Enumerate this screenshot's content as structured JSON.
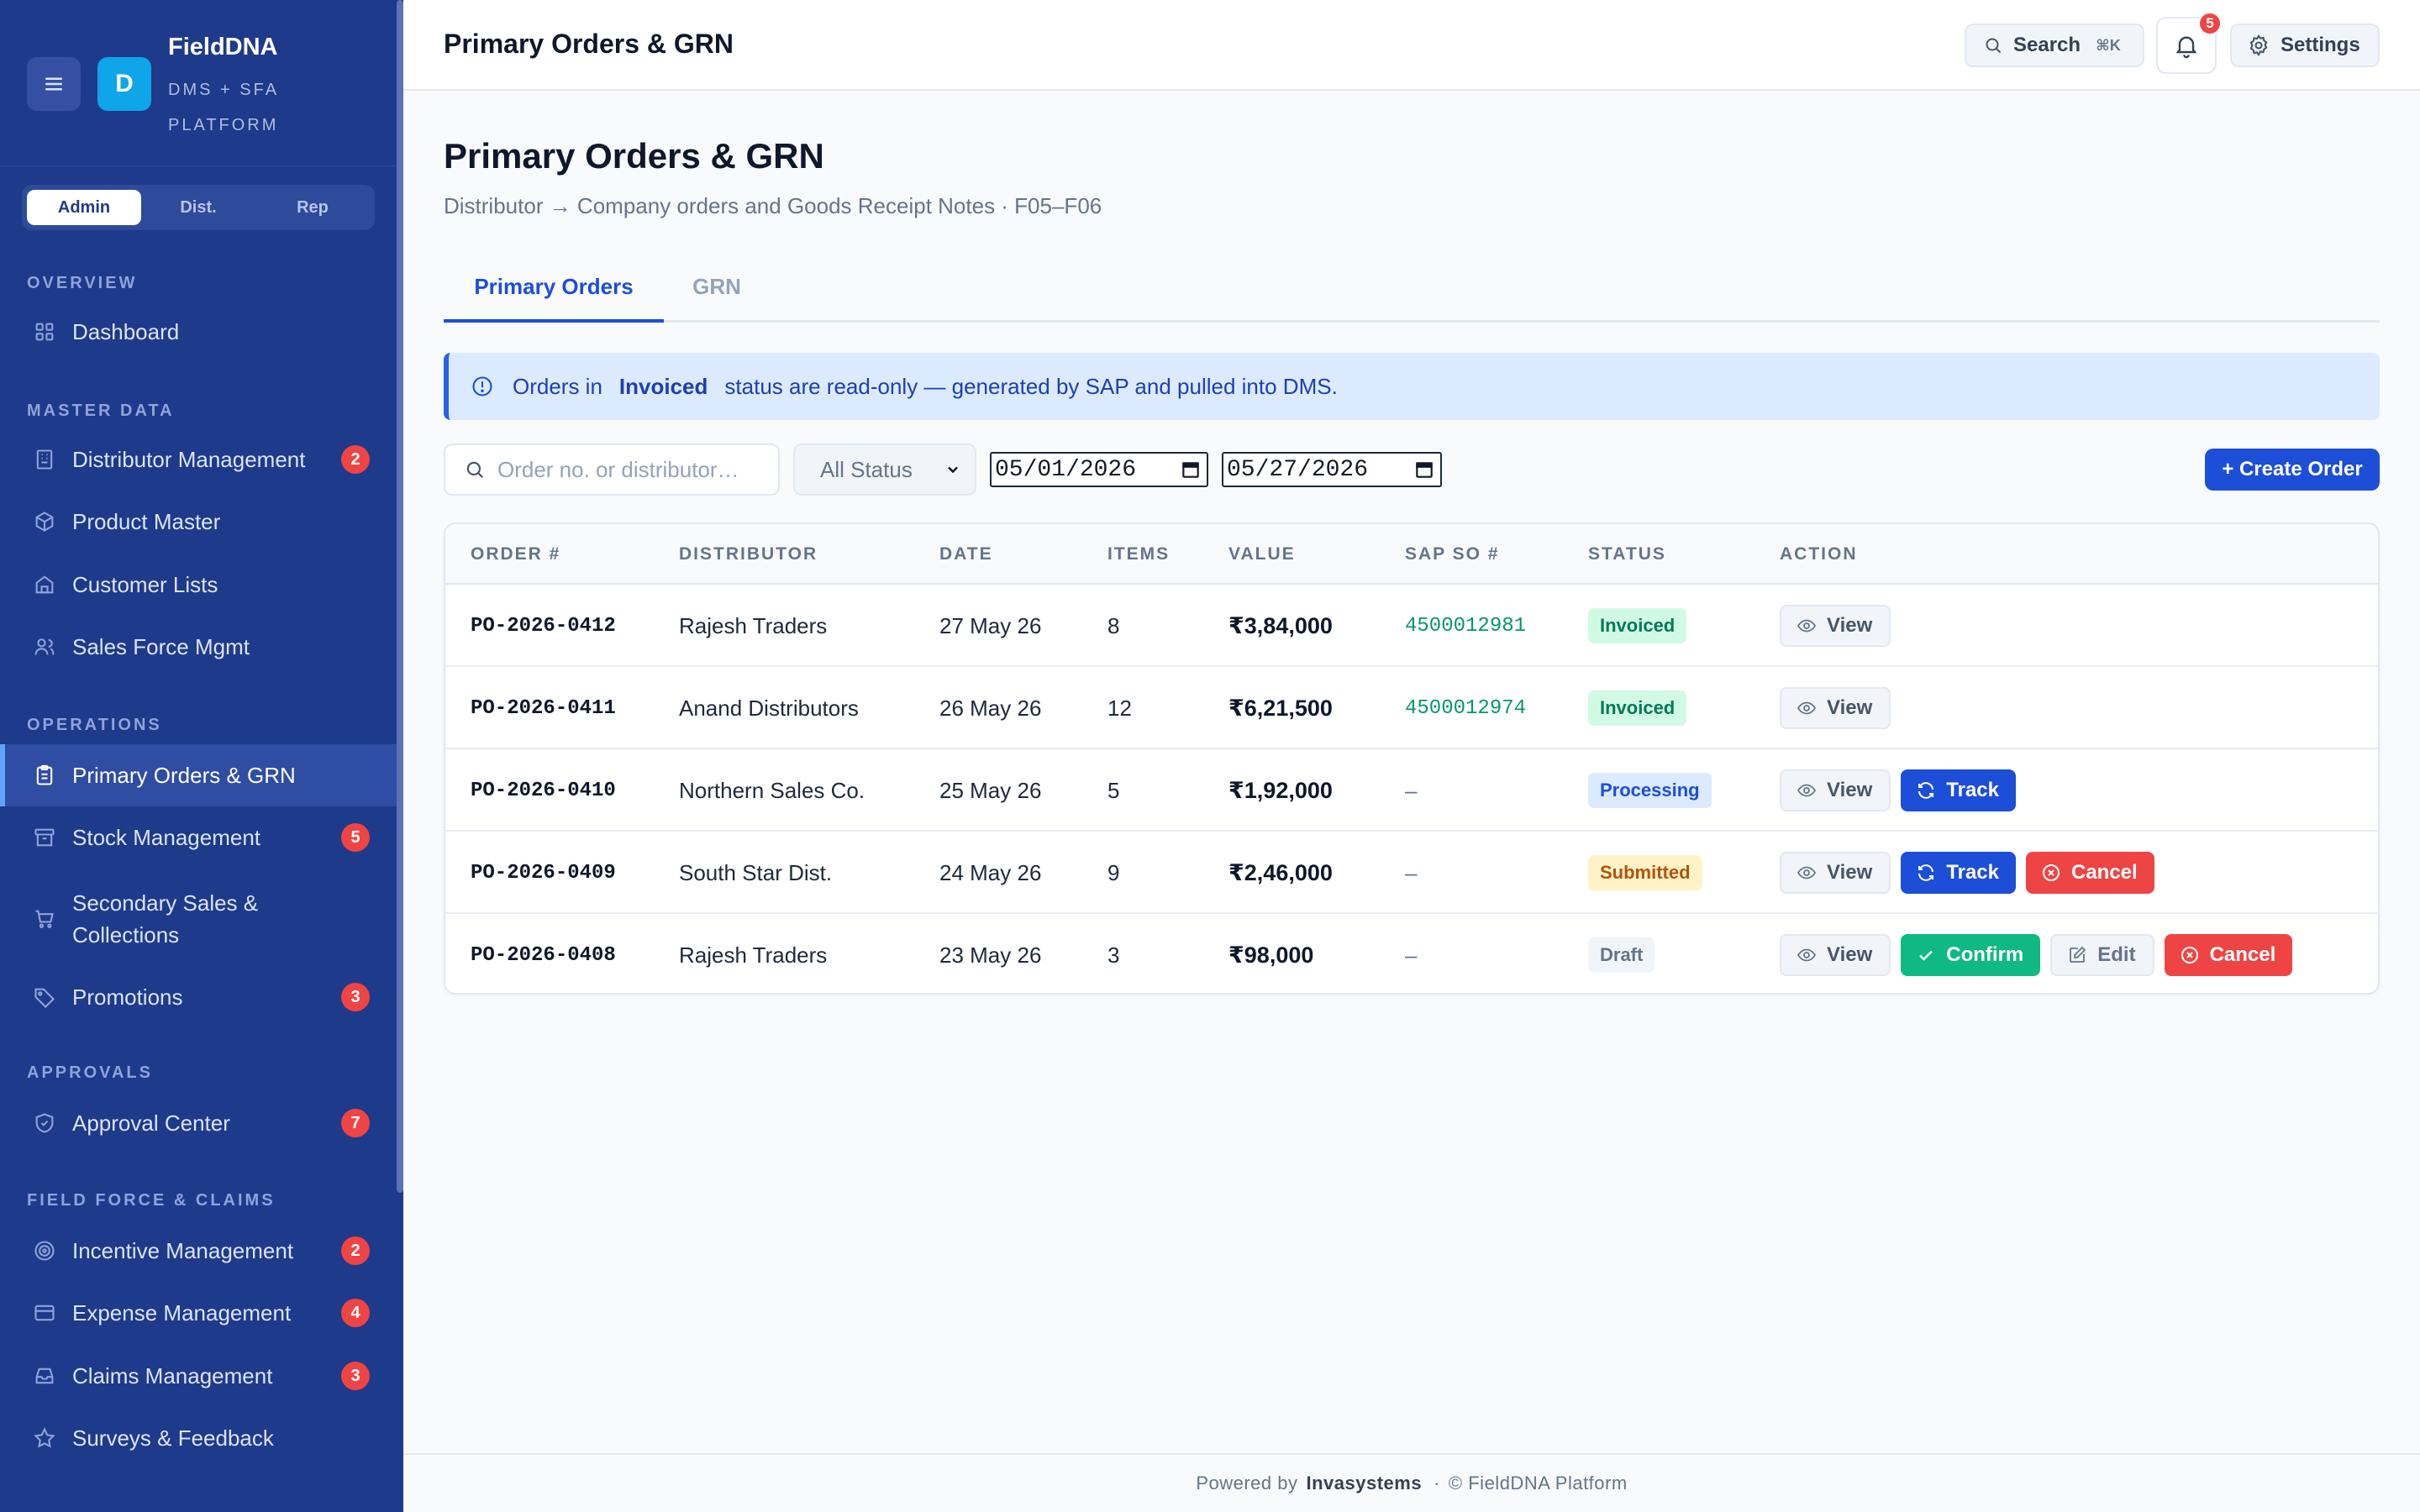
{
  "brand": {
    "logo_letter": "D",
    "name": "FieldDNA",
    "subtitle": "DMS + SFA PLATFORM"
  },
  "roles": [
    "Admin",
    "Dist.",
    "Rep"
  ],
  "active_role": "Admin",
  "sidebar": {
    "sections": {
      "overview": "OVERVIEW",
      "master_data": "MASTER DATA",
      "operations": "OPERATIONS",
      "approvals": "APPROVALS",
      "field_force": "FIELD FORCE & CLAIMS"
    },
    "items": {
      "dashboard": {
        "label": "Dashboard",
        "icon": "grid-icon"
      },
      "distributor": {
        "label": "Distributor Management",
        "icon": "building-icon",
        "badge": "2"
      },
      "product": {
        "label": "Product Master",
        "icon": "box-icon"
      },
      "customer": {
        "label": "Customer Lists",
        "icon": "store-icon"
      },
      "salesforce": {
        "label": "Sales Force Mgmt",
        "icon": "users-icon"
      },
      "primary_orders": {
        "label": "Primary Orders & GRN",
        "icon": "clipboard-icon"
      },
      "stock": {
        "label": "Stock Management",
        "icon": "archive-icon",
        "badge": "5"
      },
      "secondary_line1": "Secondary Sales &",
      "secondary_line2": "Collections",
      "promotions": {
        "label": "Promotions",
        "icon": "tag-icon",
        "badge": "3"
      },
      "approval_center": {
        "label": "Approval Center",
        "icon": "shield-icon",
        "badge": "7"
      },
      "incentive": {
        "label": "Incentive Management",
        "icon": "target-icon",
        "badge": "2"
      },
      "expense": {
        "label": "Expense Management",
        "icon": "card-icon",
        "badge": "4"
      },
      "claims": {
        "label": "Claims Management",
        "icon": "inbox-icon",
        "badge": "3"
      },
      "surveys": {
        "label": "Surveys & Feedback",
        "icon": "star-icon"
      }
    }
  },
  "topbar": {
    "title": "Primary Orders & GRN",
    "search_label": "Search",
    "search_shortcut": "⌘K",
    "notification_count": "5",
    "settings_label": "Settings"
  },
  "page": {
    "title": "Primary Orders & GRN",
    "subtitle": "Distributor → Company orders and Goods Receipt Notes · F05–F06",
    "tabs": [
      "Primary Orders",
      "GRN"
    ],
    "active_tab": "Primary Orders"
  },
  "banner": {
    "prefix": "Orders in",
    "highlight": "Invoiced",
    "suffix": "status are read-only — generated by SAP and pulled into DMS."
  },
  "filters": {
    "search_placeholder": "Order no. or distributor…",
    "status_value": "All Status",
    "date_from": "05/01/2026",
    "date_to": "05/27/2026",
    "create_label": "+ Create Order"
  },
  "table": {
    "columns": [
      "ORDER #",
      "DISTRIBUTOR",
      "DATE",
      "ITEMS",
      "VALUE",
      "SAP SO #",
      "STATUS",
      "ACTION"
    ],
    "rows": [
      {
        "order": "PO-2026-0412",
        "distributor": "Rajesh Traders",
        "date": "27 May 26",
        "items": "8",
        "value": "₹3,84,000",
        "sap": "4500012981",
        "status": "Invoiced",
        "actions": [
          "View"
        ]
      },
      {
        "order": "PO-2026-0411",
        "distributor": "Anand Distributors",
        "date": "26 May 26",
        "items": "12",
        "value": "₹6,21,500",
        "sap": "4500012974",
        "status": "Invoiced",
        "actions": [
          "View"
        ]
      },
      {
        "order": "PO-2026-0410",
        "distributor": "Northern Sales Co.",
        "date": "25 May 26",
        "items": "5",
        "value": "₹1,92,000",
        "sap": "–",
        "status": "Processing",
        "actions": [
          "View",
          "Track"
        ]
      },
      {
        "order": "PO-2026-0409",
        "distributor": "South Star Dist.",
        "date": "24 May 26",
        "items": "9",
        "value": "₹2,46,000",
        "sap": "–",
        "status": "Submitted",
        "actions": [
          "View",
          "Track",
          "Cancel"
        ]
      },
      {
        "order": "PO-2026-0408",
        "distributor": "Rajesh Traders",
        "date": "23 May 26",
        "items": "3",
        "value": "₹98,000",
        "sap": "–",
        "status": "Draft",
        "actions": [
          "View",
          "Confirm",
          "Edit",
          "Cancel"
        ]
      }
    ]
  },
  "footer": {
    "powered_by": "Powered by",
    "company": "Invasystems",
    "separator": "·",
    "copyright": "© FieldDNA Platform"
  },
  "colors": {
    "sidebar_bg": "#1e3a8a",
    "accent": "#1d4ed8",
    "badge": "#ef4444",
    "success": "#10b981",
    "sap_green": "#059669"
  }
}
